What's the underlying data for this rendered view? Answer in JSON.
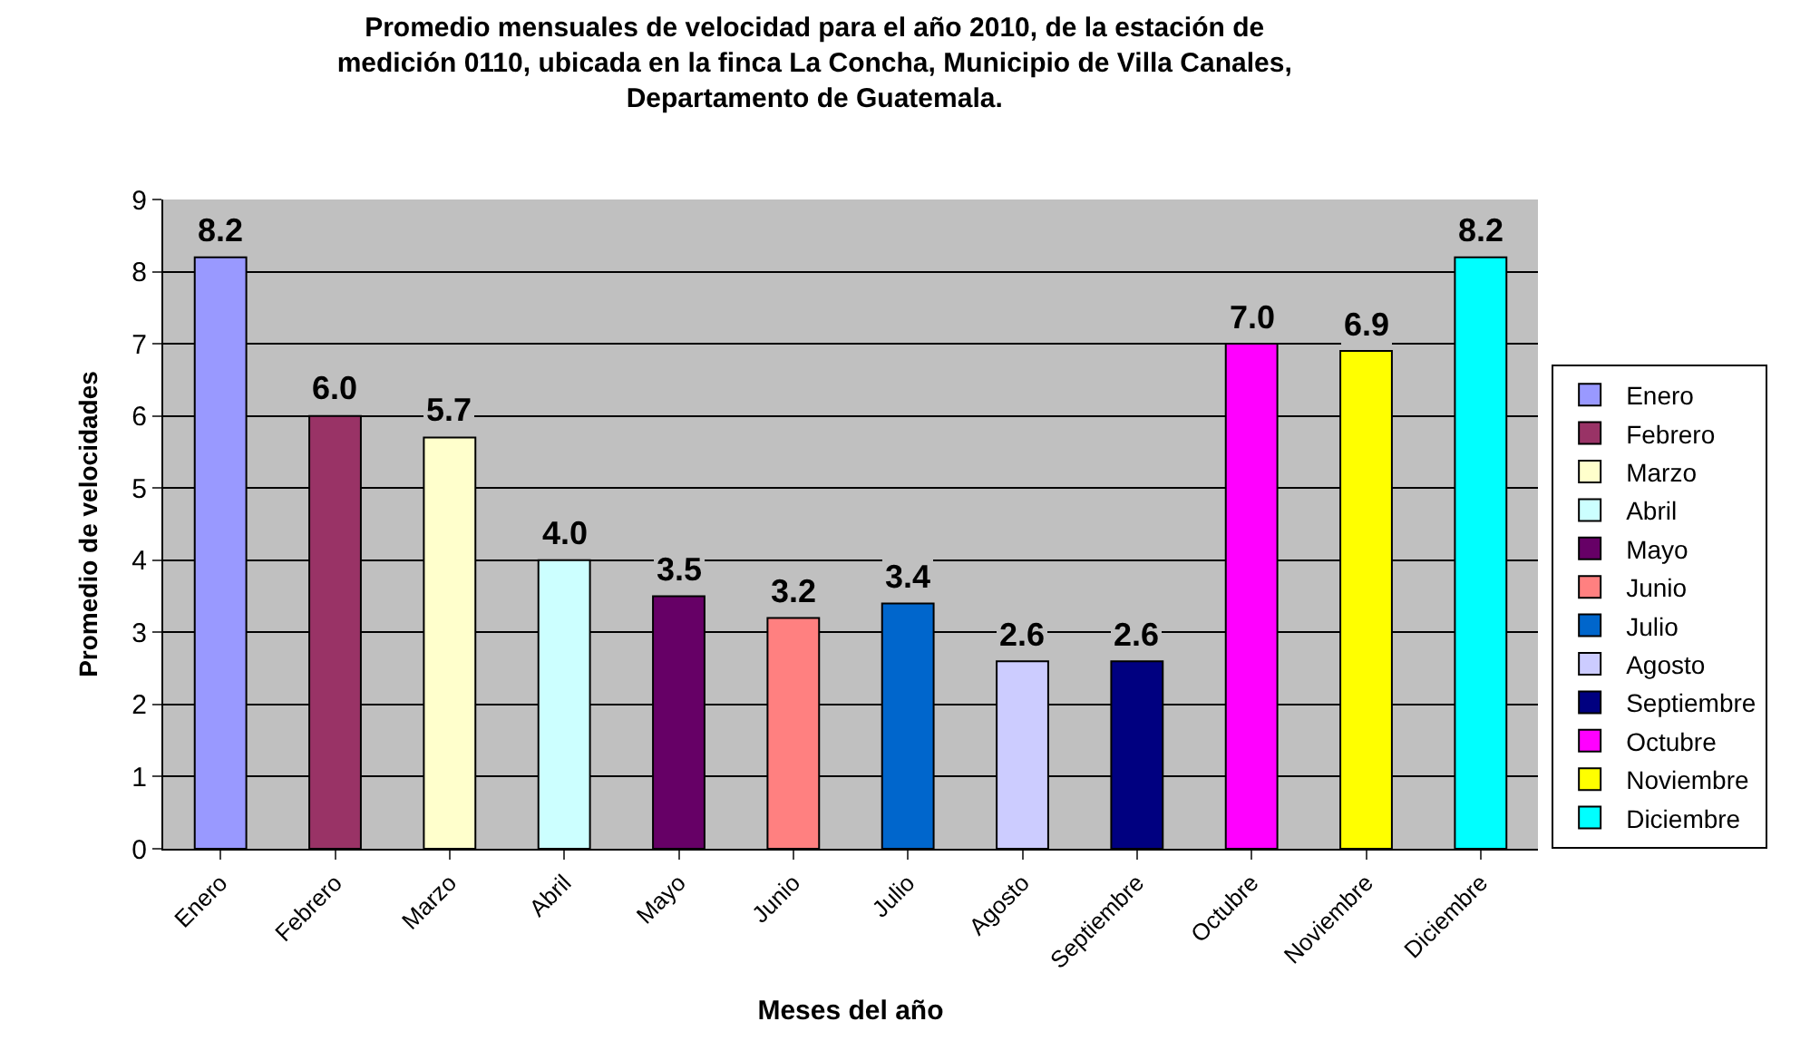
{
  "chart_data": {
    "type": "bar",
    "title": "Promedio mensuales de velocidad para el año 2010, de la estación de\nmedición 0110, ubicada en la finca La Concha, Municipio de Villa Canales,\nDepartamento de Guatemala.",
    "xlabel": "Meses del año",
    "ylabel": "Promedio de velocidades",
    "categories": [
      "Enero",
      "Febrero",
      "Marzo",
      "Abril",
      "Mayo",
      "Junio",
      "Julio",
      "Agosto",
      "Septiembre",
      "Octubre",
      "Noviembre",
      "Diciembre"
    ],
    "series": [
      {
        "name": "Enero",
        "color": "#9999ff",
        "values": [
          8.2,
          null,
          null,
          null,
          null,
          null,
          null,
          null,
          null,
          null,
          null,
          null
        ],
        "value_labels": [
          "8.2",
          null,
          null,
          null,
          null,
          null,
          null,
          null,
          null,
          null,
          null,
          null
        ]
      },
      {
        "name": "Febrero",
        "color": "#993366",
        "values": [
          null,
          6.0,
          null,
          null,
          null,
          null,
          null,
          null,
          null,
          null,
          null,
          null
        ],
        "value_labels": [
          null,
          "6.0",
          null,
          null,
          null,
          null,
          null,
          null,
          null,
          null,
          null,
          null
        ]
      },
      {
        "name": "Marzo",
        "color": "#ffffcc",
        "values": [
          null,
          null,
          5.7,
          null,
          null,
          null,
          null,
          null,
          null,
          null,
          null,
          null
        ],
        "value_labels": [
          null,
          null,
          "5.7",
          null,
          null,
          null,
          null,
          null,
          null,
          null,
          null,
          null
        ]
      },
      {
        "name": "Abril",
        "color": "#ccffff",
        "values": [
          null,
          null,
          null,
          4.0,
          null,
          null,
          null,
          null,
          null,
          null,
          null,
          null
        ],
        "value_labels": [
          null,
          null,
          null,
          "4.0",
          null,
          null,
          null,
          null,
          null,
          null,
          null,
          null
        ]
      },
      {
        "name": "Mayo",
        "color": "#660066",
        "values": [
          null,
          null,
          null,
          null,
          3.5,
          null,
          null,
          null,
          null,
          null,
          null,
          null
        ],
        "value_labels": [
          null,
          null,
          null,
          null,
          "3.5",
          null,
          null,
          null,
          null,
          null,
          null,
          null
        ]
      },
      {
        "name": "Junio",
        "color": "#ff8080",
        "values": [
          null,
          null,
          null,
          null,
          null,
          3.2,
          null,
          null,
          null,
          null,
          null,
          null
        ],
        "value_labels": [
          null,
          null,
          null,
          null,
          null,
          "3.2",
          null,
          null,
          null,
          null,
          null,
          null
        ]
      },
      {
        "name": "Julio",
        "color": "#0066cc",
        "values": [
          null,
          null,
          null,
          null,
          null,
          null,
          3.4,
          null,
          null,
          null,
          null,
          null
        ],
        "value_labels": [
          null,
          null,
          null,
          null,
          null,
          null,
          "3.4",
          null,
          null,
          null,
          null,
          null
        ]
      },
      {
        "name": "Agosto",
        "color": "#ccccff",
        "values": [
          null,
          null,
          null,
          null,
          null,
          null,
          null,
          2.6,
          null,
          null,
          null,
          null
        ],
        "value_labels": [
          null,
          null,
          null,
          null,
          null,
          null,
          null,
          "2.6",
          null,
          null,
          null,
          null
        ]
      },
      {
        "name": "Septiembre",
        "color": "#000080",
        "values": [
          null,
          null,
          null,
          null,
          null,
          null,
          null,
          null,
          2.6,
          null,
          null,
          null
        ],
        "value_labels": [
          null,
          null,
          null,
          null,
          null,
          null,
          null,
          null,
          "2.6",
          null,
          null,
          null
        ]
      },
      {
        "name": "Octubre",
        "color": "#ff00ff",
        "values": [
          null,
          null,
          null,
          null,
          null,
          null,
          null,
          null,
          null,
          7.0,
          null,
          null
        ],
        "value_labels": [
          null,
          null,
          null,
          null,
          null,
          null,
          null,
          null,
          null,
          "7.0",
          null,
          null
        ]
      },
      {
        "name": "Noviembre",
        "color": "#ffff00",
        "values": [
          null,
          null,
          null,
          null,
          null,
          null,
          null,
          null,
          null,
          null,
          6.9,
          null
        ],
        "value_labels": [
          null,
          null,
          null,
          null,
          null,
          null,
          null,
          null,
          null,
          null,
          "6.9",
          null
        ]
      },
      {
        "name": "Diciembre",
        "color": "#00ffff",
        "values": [
          null,
          null,
          null,
          null,
          null,
          null,
          null,
          null,
          null,
          null,
          null,
          8.2
        ],
        "value_labels": [
          null,
          null,
          null,
          null,
          null,
          null,
          null,
          null,
          null,
          null,
          null,
          "8.2"
        ]
      }
    ],
    "ylim": [
      0,
      9
    ],
    "yticks": [
      0,
      1,
      2,
      3,
      4,
      5,
      6,
      7,
      8,
      9
    ],
    "grid": "y",
    "legend": "right"
  }
}
